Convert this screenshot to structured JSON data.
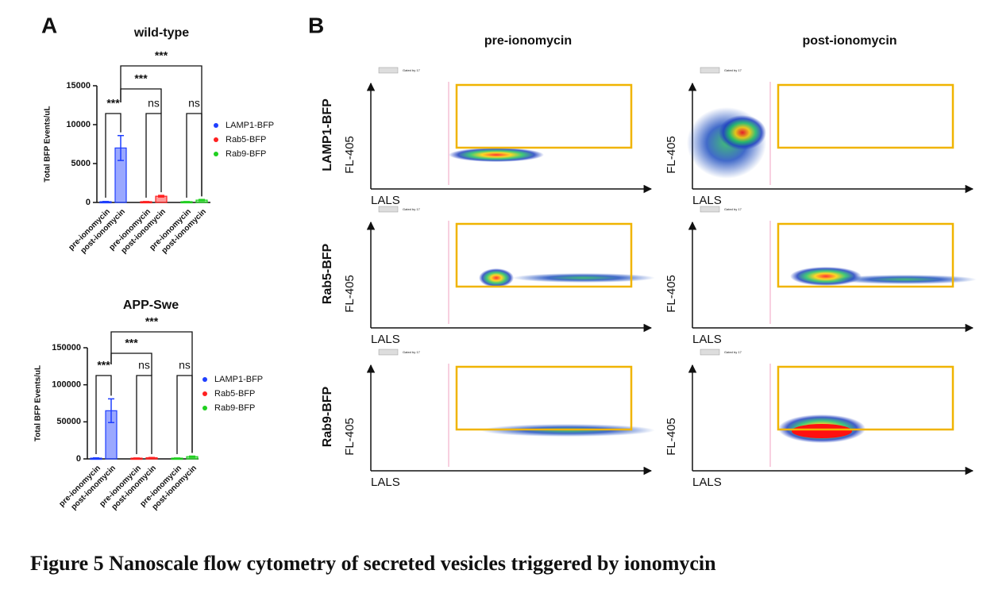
{
  "panels": {
    "a": "A",
    "b": "B"
  },
  "chart_data": [
    {
      "type": "bar",
      "title": "wild-type",
      "y_label": "Total BFP Events/uL",
      "categories": [
        "pre-ionomycin",
        "post-ionomycin",
        "pre-ionomycin",
        "post-ionomycin",
        "pre-ionomycin",
        "post-ionomycin"
      ],
      "series": [
        {
          "name": "LAMP1-BFP",
          "color": "#1f3fff",
          "values": [
            100,
            7000,
            null,
            null,
            null,
            null
          ],
          "errors": [
            30,
            1600,
            null,
            null,
            null,
            null
          ]
        },
        {
          "name": "Rab5-BFP",
          "color": "#ff2020",
          "values": [
            null,
            null,
            100,
            800,
            null,
            null
          ],
          "errors": [
            null,
            null,
            20,
            100,
            null,
            null
          ]
        },
        {
          "name": "Rab9-BFP",
          "color": "#20d020",
          "values": [
            null,
            null,
            null,
            null,
            100,
            300
          ],
          "errors": [
            null,
            null,
            null,
            null,
            20,
            80
          ]
        }
      ],
      "ylim": [
        0,
        15000
      ],
      "yticks": [
        0,
        5000,
        10000,
        15000
      ],
      "annotations": [
        "***",
        "ns",
        "ns",
        "***",
        "***"
      ],
      "legend": "right"
    },
    {
      "type": "bar",
      "title": "APP-Swe",
      "y_label": "Total BFP Events/uL",
      "categories": [
        "pre-ionomycin",
        "post-ionomycin",
        "pre-ionomycin",
        "post-ionomycin",
        "pre-ionomycin",
        "post-ionomycin"
      ],
      "series": [
        {
          "name": "LAMP1-BFP",
          "color": "#1f3fff",
          "values": [
            1000,
            65000,
            null,
            null,
            null,
            null
          ],
          "errors": [
            300,
            16000,
            null,
            null,
            null,
            null
          ]
        },
        {
          "name": "Rab5-BFP",
          "color": "#ff2020",
          "values": [
            null,
            null,
            1000,
            1500,
            null,
            null
          ],
          "errors": [
            null,
            null,
            200,
            400,
            null,
            null
          ]
        },
        {
          "name": "Rab9-BFP",
          "color": "#20d020",
          "values": [
            null,
            null,
            null,
            null,
            1000,
            3000
          ],
          "errors": [
            null,
            null,
            null,
            null,
            200,
            800
          ]
        }
      ],
      "ylim": [
        0,
        150000
      ],
      "yticks": [
        0,
        50000,
        100000,
        150000
      ],
      "annotations": [
        "***",
        "ns",
        "ns",
        "***",
        "***"
      ],
      "legend": "right"
    }
  ],
  "flow": {
    "columns": [
      "pre-ionomycin",
      "post-ionomycin"
    ],
    "rows": [
      "LAMP1-BFP",
      "Rab5-BFP",
      "Rab9-BFP"
    ],
    "y_label": "FL-405",
    "x_label": "LALS",
    "gate_note": "Gated by 17"
  },
  "caption": "Figure 5 Nanoscale flow cytometry of secreted vesicles triggered by ionomycin"
}
